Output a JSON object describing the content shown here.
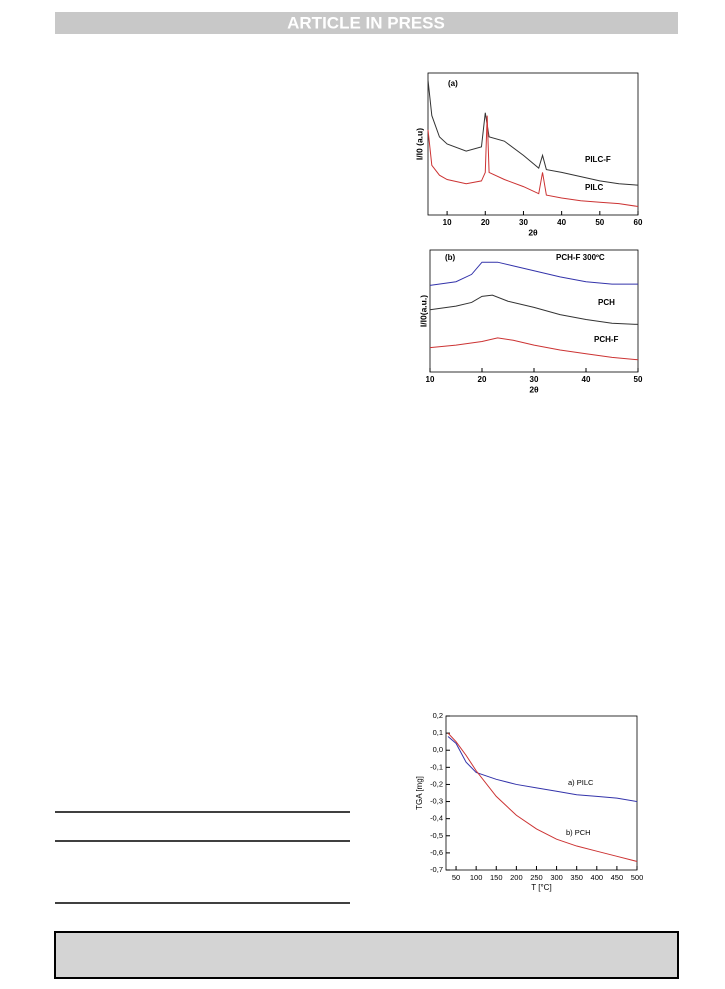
{
  "header": {
    "banner": "ARTICLE IN PRESS"
  },
  "chart_data": [
    {
      "type": "line",
      "panel_label": "(a)",
      "x_label": "2θ",
      "y_label": "I/I0 (a.u)",
      "xlim": [
        5,
        60
      ],
      "xticks": [
        10,
        20,
        30,
        40,
        50,
        60
      ],
      "ylim": [
        0,
        100
      ],
      "series": [
        {
          "name": "PILC-F",
          "color": "#333333",
          "x": [
            5,
            6,
            8,
            10,
            15,
            19,
            20,
            21,
            25,
            30,
            34,
            35,
            36,
            40,
            45,
            50,
            55,
            60
          ],
          "values": [
            95,
            70,
            55,
            50,
            45,
            48,
            72,
            55,
            52,
            42,
            33,
            42,
            32,
            30,
            27,
            24,
            22,
            21
          ]
        },
        {
          "name": "PILC",
          "color": "#cc3333",
          "x": [
            5,
            6,
            8,
            10,
            15,
            19,
            20,
            20.5,
            21,
            25,
            30,
            34,
            35,
            36,
            40,
            45,
            50,
            55,
            60
          ],
          "values": [
            60,
            35,
            28,
            25,
            22,
            24,
            30,
            70,
            30,
            25,
            20,
            15,
            30,
            14,
            12,
            10,
            9,
            8,
            6
          ]
        }
      ]
    },
    {
      "type": "line",
      "panel_label": "(b)",
      "x_label": "2θ",
      "y_label": "I/I0(a.u.)",
      "xlim": [
        10,
        50
      ],
      "xticks": [
        10,
        20,
        30,
        40,
        50
      ],
      "ylim": [
        0,
        100
      ],
      "series": [
        {
          "name": "PCH-F 300ºC",
          "color": "#3333aa",
          "x": [
            10,
            15,
            18,
            20,
            23,
            26,
            30,
            35,
            40,
            45,
            50
          ],
          "values": [
            71,
            74,
            80,
            90,
            90,
            87,
            83,
            78,
            74,
            72,
            72
          ]
        },
        {
          "name": "PCH",
          "color": "#333333",
          "x": [
            10,
            15,
            18,
            20,
            22,
            25,
            30,
            35,
            40,
            45,
            50
          ],
          "values": [
            51,
            54,
            57,
            62,
            63,
            58,
            53,
            47,
            43,
            40,
            39
          ]
        },
        {
          "name": "PCH-F",
          "color": "#cc3333",
          "x": [
            10,
            15,
            20,
            23,
            26,
            30,
            35,
            40,
            45,
            50
          ],
          "values": [
            20,
            22,
            25,
            28,
            26,
            22,
            18,
            15,
            12,
            10
          ]
        }
      ]
    },
    {
      "type": "line",
      "x_label": "T [°C]",
      "y_label": "TGA [mg]",
      "xlim": [
        25,
        500
      ],
      "xticks": [
        50,
        100,
        150,
        200,
        250,
        300,
        350,
        400,
        450,
        500
      ],
      "ylim": [
        -0.7,
        0.2
      ],
      "yticks": [
        {
          "value": 0.2,
          "label": "0,2"
        },
        {
          "value": 0.1,
          "label": "0,1"
        },
        {
          "value": 0,
          "label": "0,0"
        },
        {
          "value": -0.1,
          "label": "-0,1"
        },
        {
          "value": -0.2,
          "label": "-0,2"
        },
        {
          "value": -0.3,
          "label": "-0,3"
        },
        {
          "value": -0.4,
          "label": "-0,4"
        },
        {
          "value": -0.5,
          "label": "-0,5"
        },
        {
          "value": -0.6,
          "label": "-0,6"
        },
        {
          "value": -0.7,
          "label": "-0,7"
        }
      ],
      "series": [
        {
          "name": "a) PILC",
          "color": "#3333aa",
          "x": [
            30,
            50,
            75,
            100,
            150,
            200,
            250,
            300,
            350,
            400,
            450,
            500
          ],
          "values": [
            0.08,
            0.04,
            -0.07,
            -0.13,
            -0.17,
            -0.2,
            -0.22,
            -0.24,
            -0.26,
            -0.27,
            -0.28,
            -0.3
          ]
        },
        {
          "name": "b) PCH",
          "color": "#cc3333",
          "x": [
            30,
            50,
            75,
            100,
            150,
            200,
            250,
            300,
            350,
            400,
            450,
            500
          ],
          "values": [
            0.1,
            0.05,
            -0.03,
            -0.12,
            -0.27,
            -0.38,
            -0.46,
            -0.52,
            -0.56,
            -0.59,
            -0.62,
            -0.65
          ]
        }
      ]
    }
  ]
}
